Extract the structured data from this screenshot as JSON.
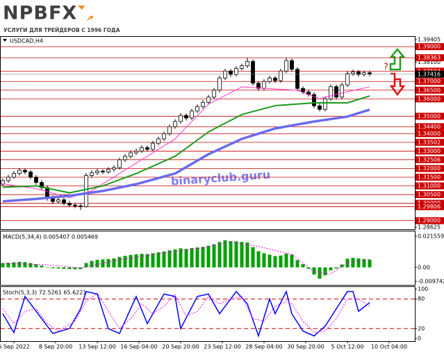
{
  "logo": {
    "name": "NPBFX",
    "tagline": "УСЛУГИ ДЛЯ ТРЕЙДЕРОВ С 1996 ГОДА"
  },
  "watermark": "binaryclub.guru",
  "chart_data": [
    {
      "type": "candlestick",
      "title": "USDCAD,H4",
      "annotation": "?",
      "candles": [
        [
          1.311,
          1.3142,
          1.3098,
          1.313
        ],
        [
          1.313,
          1.3163,
          1.3118,
          1.315
        ],
        [
          1.315,
          1.3185,
          1.314,
          1.3172
        ],
        [
          1.3172,
          1.3203,
          1.316,
          1.319
        ],
        [
          1.319,
          1.32,
          1.3166,
          1.318
        ],
        [
          1.318,
          1.3192,
          1.3138,
          1.315
        ],
        [
          1.315,
          1.3162,
          1.3106,
          1.312
        ],
        [
          1.312,
          1.3133,
          1.3076,
          1.309
        ],
        [
          1.309,
          1.3102,
          1.3015,
          1.303
        ],
        [
          1.303,
          1.3045,
          1.2995,
          1.301
        ],
        [
          1.301,
          1.3036,
          1.3,
          1.302
        ],
        [
          1.302,
          1.3032,
          1.2988,
          1.3
        ],
        [
          1.3,
          1.3014,
          1.2978,
          1.299
        ],
        [
          1.299,
          1.3003,
          1.2972,
          1.2985
        ],
        [
          1.2985,
          1.2998,
          1.2962,
          1.298
        ],
        [
          1.298,
          1.3175,
          1.2975,
          1.316
        ],
        [
          1.316,
          1.319,
          1.3148,
          1.3175
        ],
        [
          1.3175,
          1.3198,
          1.3162,
          1.3185
        ],
        [
          1.3185,
          1.3196,
          1.3168,
          1.318
        ],
        [
          1.318,
          1.3208,
          1.317,
          1.3195
        ],
        [
          1.3195,
          1.3218,
          1.3182,
          1.3205
        ],
        [
          1.3205,
          1.3262,
          1.3195,
          1.325
        ],
        [
          1.325,
          1.3283,
          1.3238,
          1.327
        ],
        [
          1.327,
          1.3302,
          1.3258,
          1.329
        ],
        [
          1.329,
          1.3314,
          1.3278,
          1.33
        ],
        [
          1.33,
          1.3333,
          1.3288,
          1.332
        ],
        [
          1.332,
          1.3332,
          1.3297,
          1.331
        ],
        [
          1.331,
          1.3358,
          1.33,
          1.3345
        ],
        [
          1.3345,
          1.3383,
          1.3333,
          1.337
        ],
        [
          1.337,
          1.3413,
          1.3358,
          1.34
        ],
        [
          1.34,
          1.3453,
          1.3388,
          1.344
        ],
        [
          1.344,
          1.3483,
          1.3428,
          1.347
        ],
        [
          1.347,
          1.3518,
          1.3458,
          1.3505
        ],
        [
          1.3505,
          1.3517,
          1.3476,
          1.349
        ],
        [
          1.349,
          1.3543,
          1.3478,
          1.353
        ],
        [
          1.353,
          1.3568,
          1.3518,
          1.3555
        ],
        [
          1.3555,
          1.3593,
          1.3543,
          1.358
        ],
        [
          1.358,
          1.3623,
          1.3568,
          1.361
        ],
        [
          1.361,
          1.3663,
          1.3598,
          1.365
        ],
        [
          1.365,
          1.3733,
          1.3638,
          1.372
        ],
        [
          1.372,
          1.3773,
          1.3708,
          1.376
        ],
        [
          1.376,
          1.3772,
          1.3727,
          1.374
        ],
        [
          1.374,
          1.3788,
          1.3728,
          1.3775
        ],
        [
          1.3775,
          1.3803,
          1.3763,
          1.379
        ],
        [
          1.379,
          1.3835,
          1.3778,
          1.3815
        ],
        [
          1.3815,
          1.3828,
          1.3677,
          1.369
        ],
        [
          1.369,
          1.3702,
          1.3646,
          1.366
        ],
        [
          1.366,
          1.3713,
          1.3648,
          1.37
        ],
        [
          1.37,
          1.3733,
          1.3688,
          1.372
        ],
        [
          1.372,
          1.3732,
          1.3692,
          1.3705
        ],
        [
          1.3705,
          1.3773,
          1.3693,
          1.376
        ],
        [
          1.376,
          1.3836,
          1.3748,
          1.382
        ],
        [
          1.382,
          1.3832,
          1.3757,
          1.377
        ],
        [
          1.377,
          1.3782,
          1.3646,
          1.366
        ],
        [
          1.366,
          1.3672,
          1.3627,
          1.364
        ],
        [
          1.364,
          1.3652,
          1.3612,
          1.3625
        ],
        [
          1.3625,
          1.3637,
          1.3546,
          1.356
        ],
        [
          1.356,
          1.3572,
          1.3528,
          1.354
        ],
        [
          1.354,
          1.3613,
          1.3528,
          1.36
        ],
        [
          1.36,
          1.3683,
          1.3588,
          1.367
        ],
        [
          1.367,
          1.3682,
          1.3596,
          1.361
        ],
        [
          1.361,
          1.3693,
          1.3598,
          1.368
        ],
        [
          1.368,
          1.3758,
          1.3668,
          1.3745
        ],
        [
          1.3745,
          1.3768,
          1.3733,
          1.3755
        ],
        [
          1.3755,
          1.3767,
          1.3728,
          1.374
        ],
        [
          1.374,
          1.3763,
          1.3728,
          1.375
        ],
        [
          1.375,
          1.3762,
          1.373,
          1.3742
        ]
      ],
      "series": [
        {
          "color": "#ff33cc",
          "width": 1,
          "x": [
            0,
            6,
            12,
            16,
            24,
            31,
            37,
            43,
            49,
            53,
            57,
            62,
            66
          ],
          "values": [
            1.3112,
            1.3084,
            1.3032,
            1.3072,
            1.3231,
            1.337,
            1.3569,
            1.3669,
            1.3657,
            1.3649,
            1.3601,
            1.3641,
            1.3669
          ]
        },
        {
          "color": "#1a9a1a",
          "width": 2,
          "x": [
            0,
            6,
            12,
            18,
            24,
            31,
            37,
            43,
            49,
            56,
            62,
            66
          ],
          "values": [
            1.3092,
            1.31,
            1.306,
            1.31,
            1.3171,
            1.327,
            1.341,
            1.351,
            1.3561,
            1.3577,
            1.3577,
            1.3617
          ]
        },
        {
          "color": "#6a6aee",
          "width": 3.5,
          "x": [
            0,
            6,
            12,
            18,
            24,
            31,
            37,
            43,
            49,
            56,
            62,
            66
          ],
          "values": [
            1.3011,
            1.3025,
            1.3043,
            1.3071,
            1.311,
            1.3171,
            1.3282,
            1.337,
            1.343,
            1.347,
            1.3498,
            1.3538
          ]
        }
      ],
      "ylim": [
        1.28625,
        1.39405
      ],
      "yticks": [
        {
          "value": 1.39405,
          "label": "1.39405"
        },
        {
          "value": 1.381,
          "label": "1.38100"
        },
        {
          "value": 1.28625,
          "label": "1.28625"
        }
      ],
      "level_color": "#cc0000",
      "levels": [
        {
          "value": 1.39,
          "label": "1.39000"
        },
        {
          "value": 1.38363,
          "label": "1.38363"
        },
        {
          "value": 1.37594,
          "label": "1.37594"
        },
        {
          "value": 1.37,
          "label": "1.37000"
        },
        {
          "value": 1.365,
          "label": "1.36500"
        },
        {
          "value": 1.36,
          "label": "1.36000"
        },
        {
          "value": 1.35,
          "label": "1.35000"
        },
        {
          "value": 1.344,
          "label": "1.34400"
        },
        {
          "value": 1.34,
          "label": "1.34000"
        },
        {
          "value": 1.33502,
          "label": "1.33502"
        },
        {
          "value": 1.33,
          "label": "1.33000"
        },
        {
          "value": 1.32506,
          "label": "1.32506"
        },
        {
          "value": 1.32,
          "label": "1.32000"
        },
        {
          "value": 1.315,
          "label": "1.31500"
        },
        {
          "value": 1.31,
          "label": "1.31000"
        },
        {
          "value": 1.305,
          "label": "1.30500"
        },
        {
          "value": 1.3,
          "label": "1.30000"
        },
        {
          "value": 1.29806,
          "label": "1.29806"
        },
        {
          "value": 1.29,
          "label": "1.29000"
        }
      ],
      "last_price": {
        "value": 1.37416,
        "label": "1.37416"
      }
    },
    {
      "type": "macd",
      "title": "MACD(5,34,4) 0.005407 0.005469",
      "color": "#00a000",
      "values": [
        0.003,
        0.0032,
        0.0035,
        0.0038,
        0.0036,
        0.003,
        0.0022,
        0.0012,
        0.0002,
        -0.0006,
        -0.0008,
        -0.001,
        -0.0012,
        -0.0013,
        -0.0012,
        0.003,
        0.0045,
        0.0052,
        0.0055,
        0.0058,
        0.0062,
        0.0072,
        0.008,
        0.0086,
        0.009,
        0.0094,
        0.0092,
        0.0098,
        0.0104,
        0.011,
        0.0118,
        0.0124,
        0.0132,
        0.0128,
        0.0134,
        0.0138,
        0.0142,
        0.015,
        0.016,
        0.0176,
        0.0188,
        0.0182,
        0.018,
        0.0176,
        0.0172,
        0.014,
        0.0112,
        0.0098,
        0.0088,
        0.0078,
        0.0082,
        0.0095,
        0.0088,
        0.005,
        0.0022,
        -0.001,
        -0.005,
        -0.0078,
        -0.0055,
        -0.002,
        -0.0008,
        0.002,
        0.006,
        0.0066,
        0.0062,
        0.0058,
        0.005407
      ],
      "signal": {
        "color": "#ff00ff",
        "x": [
          0,
          8,
          14,
          20,
          28,
          36,
          41,
          46,
          52,
          56,
          59,
          62,
          66
        ],
        "values": [
          0.0028,
          0.0018,
          -0.0005,
          0.0045,
          0.0095,
          0.0135,
          0.0175,
          0.0145,
          0.009,
          -0.003,
          -0.0045,
          0.003,
          0.005469
        ]
      },
      "ylim": [
        -0.009742,
        0.021559
      ],
      "yticks": [
        0.021559,
        {
          "value": 0,
          "label": "0.00"
        },
        -0.009742
      ]
    },
    {
      "type": "stochastic",
      "title": "Stoch(5,3,3) 72.5261 65.6221",
      "series": [
        {
          "color": "#0000ff",
          "style": "solid",
          "x": [
            0,
            2,
            4,
            7,
            9,
            12,
            14,
            15,
            17,
            19,
            21,
            23,
            24,
            26,
            29,
            31,
            32,
            35,
            37,
            39,
            42,
            44,
            46,
            48,
            49,
            51,
            52,
            54,
            56,
            58,
            60,
            62,
            63,
            64,
            66
          ],
          "values": [
            50,
            12,
            85,
            40,
            10,
            20,
            60,
            95,
            90,
            20,
            10,
            60,
            85,
            30,
            90,
            85,
            20,
            85,
            90,
            50,
            95,
            70,
            5,
            80,
            50,
            95,
            50,
            15,
            5,
            25,
            60,
            95,
            95,
            55,
            72.5261
          ]
        },
        {
          "color": "#ff00ff",
          "style": "dotted",
          "x": [
            0,
            2,
            4,
            6,
            8,
            10,
            13,
            15,
            17,
            19,
            21,
            23,
            25,
            27,
            29,
            31,
            33,
            35,
            37,
            39,
            41,
            43,
            45,
            47,
            49,
            51,
            52,
            54,
            56,
            58,
            60,
            62,
            64,
            66
          ],
          "values": [
            60,
            30,
            55,
            60,
            30,
            15,
            35,
            75,
            92,
            55,
            20,
            40,
            70,
            50,
            65,
            88,
            45,
            55,
            85,
            70,
            80,
            85,
            40,
            35,
            65,
            75,
            70,
            35,
            12,
            15,
            40,
            80,
            80,
            65.6221
          ]
        }
      ],
      "ylim": [
        0,
        100
      ],
      "yticks": [
        100,
        80,
        20,
        0
      ],
      "levels": [
        80,
        20
      ],
      "level_color": "#cc0000",
      "xticks": [
        {
          "value": 2,
          "label": "6 Sep 2022"
        },
        {
          "value": 9.5,
          "label": "8 Sep 20:00"
        },
        {
          "value": 17,
          "label": "13 Sep 12:00"
        },
        {
          "value": 24.5,
          "label": "16 Sep 04:00"
        },
        {
          "value": 32,
          "label": "20 Sep 20:00"
        },
        {
          "value": 39.5,
          "label": "23 Sep 12:00"
        },
        {
          "value": 47,
          "label": "28 Sep 04:00"
        },
        {
          "value": 54.5,
          "label": "30 Sep 20:00"
        },
        {
          "value": 62,
          "label": "5 Oct 12:00"
        },
        {
          "value": 69.5,
          "label": "10 Oct 04:00"
        }
      ]
    }
  ]
}
